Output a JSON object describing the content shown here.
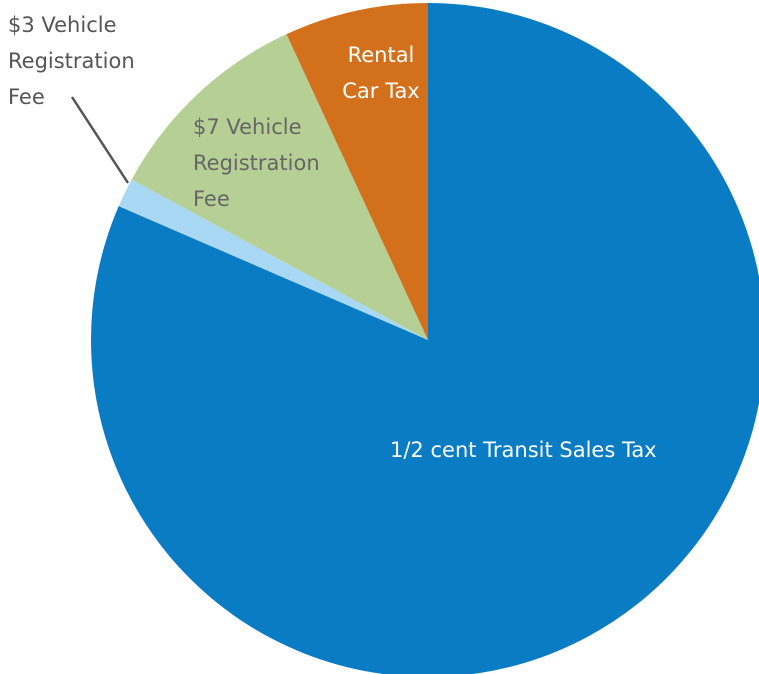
{
  "chart_data": {
    "type": "pie",
    "categories": [
      "1/2 cent Transit Sales Tax",
      "$3 Vehicle Registration Fee",
      "$7 Vehicle Registration Fee",
      "Rental Car Tax"
    ],
    "values": [
      81.5,
      1.4,
      10.2,
      6.9
    ],
    "colors": [
      "#0a7cc4",
      "#a9d8f4",
      "#b5cf94",
      "#d2701c"
    ]
  }
}
